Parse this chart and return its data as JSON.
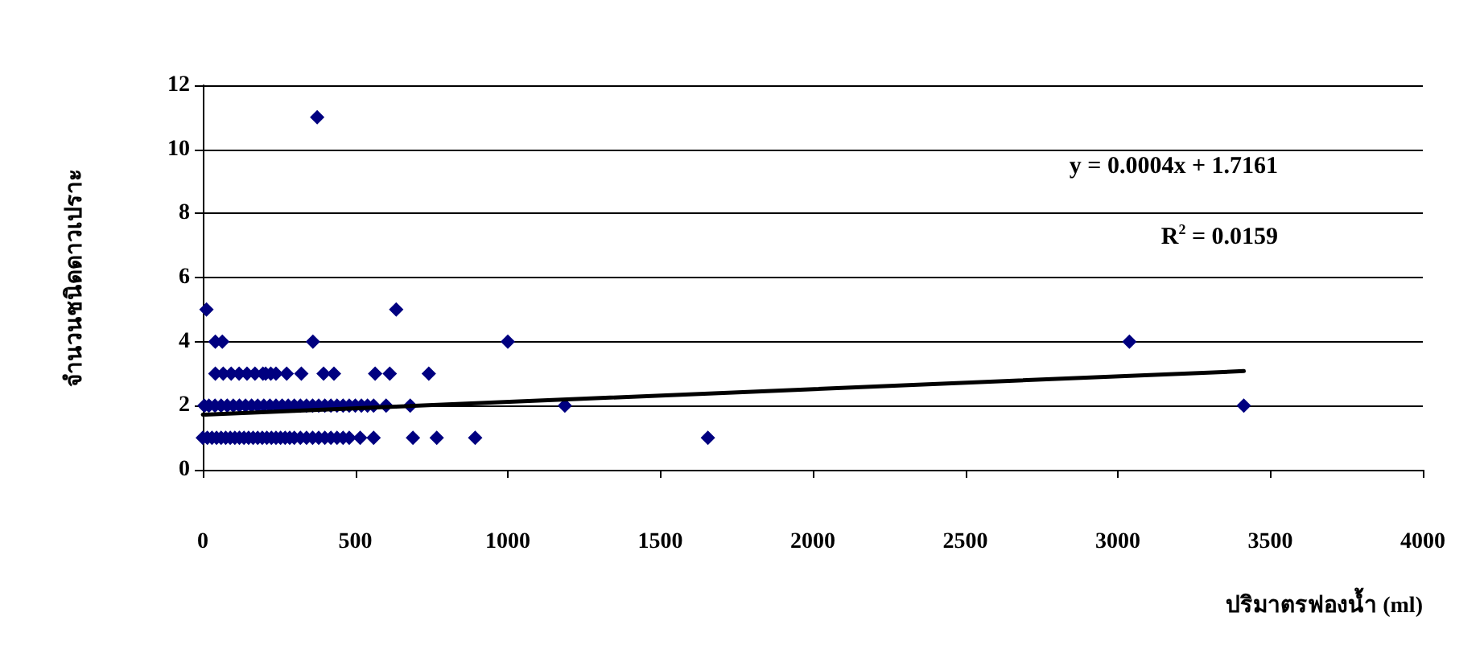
{
  "chart_data": {
    "type": "scatter",
    "xlabel": "ปริมาตรฟองน้ำ (ml)",
    "ylabel": "จำนวนชนิดดาวเปราะ",
    "xlim": [
      0,
      4000
    ],
    "xticks": [
      0,
      500,
      1000,
      1500,
      2000,
      2500,
      3000,
      3500,
      4000
    ],
    "ylim": [
      0,
      12
    ],
    "yticks": [
      0,
      2,
      4,
      6,
      8,
      10,
      12
    ],
    "grid": "y",
    "marker": "diamond",
    "annotations": [
      "y = 0.0004x + 1.7161",
      "R$^{2}$ = 0.0159"
    ],
    "series": [
      {
        "color": "#000080",
        "x": [
          375,
          12,
          634,
          41,
          64,
          361,
          1000,
          3038,
          41,
          67,
          93,
          119,
          145,
          171,
          197,
          206,
          223,
          240,
          275,
          323,
          396,
          430,
          565,
          613,
          741,
          5,
          20,
          40,
          60,
          80,
          100,
          120,
          140,
          160,
          180,
          200,
          220,
          240,
          260,
          280,
          300,
          320,
          340,
          360,
          380,
          400,
          420,
          440,
          460,
          480,
          500,
          520,
          540,
          560,
          601,
          680,
          1187,
          3413,
          0,
          15,
          30,
          45,
          60,
          75,
          90,
          105,
          120,
          135,
          150,
          165,
          180,
          195,
          210,
          225,
          240,
          255,
          270,
          285,
          300,
          320,
          340,
          360,
          380,
          400,
          420,
          440,
          460,
          480,
          516,
          560,
          689,
          767,
          893,
          1656
        ],
        "values": [
          11,
          5,
          5,
          4,
          4,
          4,
          4,
          4,
          3,
          3,
          3,
          3,
          3,
          3,
          3,
          3,
          3,
          3,
          3,
          3,
          3,
          3,
          3,
          3,
          3,
          2,
          2,
          2,
          2,
          2,
          2,
          2,
          2,
          2,
          2,
          2,
          2,
          2,
          2,
          2,
          2,
          2,
          2,
          2,
          2,
          2,
          2,
          2,
          2,
          2,
          2,
          2,
          2,
          2,
          2,
          2,
          2,
          2,
          1,
          1,
          1,
          1,
          1,
          1,
          1,
          1,
          1,
          1,
          1,
          1,
          1,
          1,
          1,
          1,
          1,
          1,
          1,
          1,
          1,
          1,
          1,
          1,
          1,
          1,
          1,
          1,
          1,
          1,
          1,
          1,
          1,
          1,
          1,
          1
        ]
      },
      {
        "type": "line",
        "color": "#000000",
        "x": [
          0,
          3413
        ],
        "values": [
          1.72,
          3.08
        ],
        "marker": "none"
      }
    ]
  }
}
